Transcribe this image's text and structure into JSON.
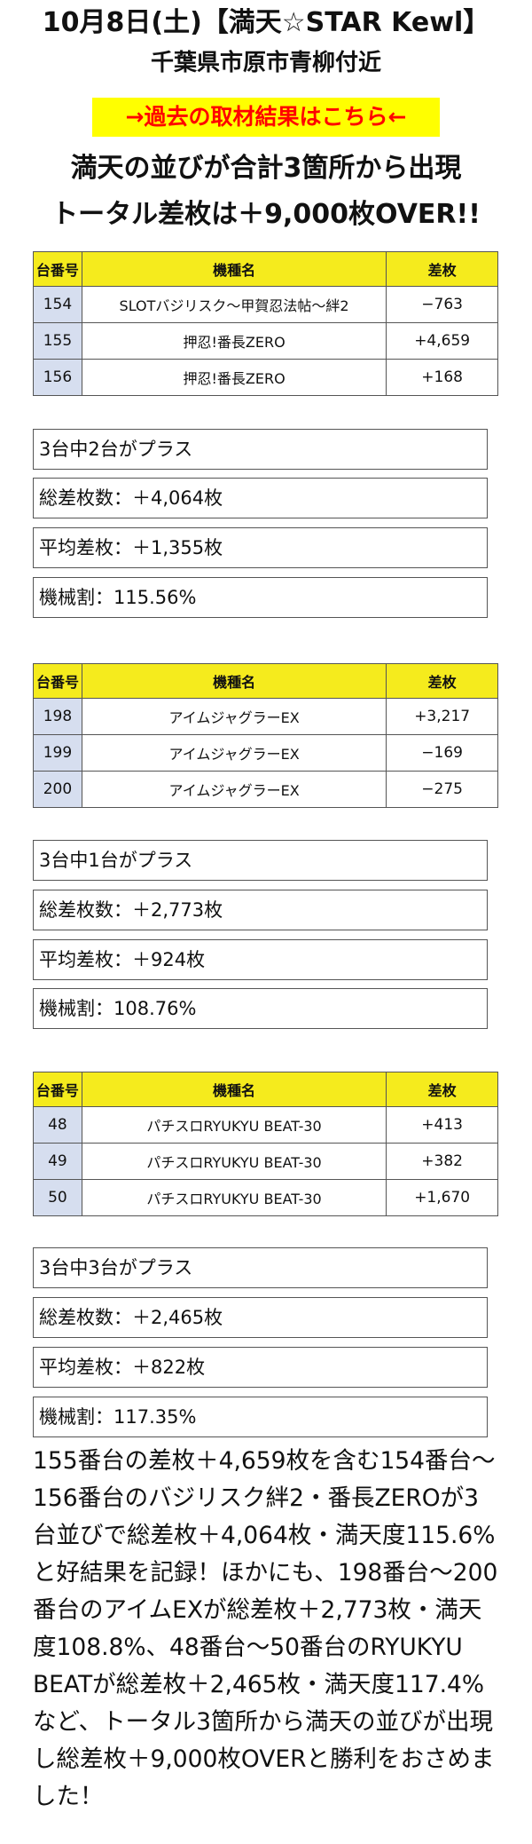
{
  "header": {
    "title": "10月8日(土)【満天☆STAR Kewl】",
    "location": "千葉県市原市青柳付近",
    "link_text": "→過去の取材結果はこちら←",
    "headline1": "満天の並びが合計3箇所から出現",
    "headline2": "トータル差枚は＋9,000枚OVER!!"
  },
  "columns": {
    "no": "台番号",
    "name": "機種名",
    "diff": "差枚"
  },
  "groups": [
    {
      "rows": [
        {
          "no": "154",
          "name": "SLOTバジリスク〜甲賀忍法帖〜絆2",
          "diff": "−763"
        },
        {
          "no": "155",
          "name": "押忍!番長ZERO",
          "diff": "+4,659"
        },
        {
          "no": "156",
          "name": "押忍!番長ZERO",
          "diff": "+168"
        }
      ],
      "summary": {
        "plus": "3台中2台がプラス",
        "total": "総差枚数：＋4,064枚",
        "avg": "平均差枚：＋1,355枚",
        "rate": "機械割：115.56%"
      }
    },
    {
      "rows": [
        {
          "no": "198",
          "name": "アイムジャグラーEX",
          "diff": "+3,217"
        },
        {
          "no": "199",
          "name": "アイムジャグラーEX",
          "diff": "−169"
        },
        {
          "no": "200",
          "name": "アイムジャグラーEX",
          "diff": "−275"
        }
      ],
      "summary": {
        "plus": "3台中1台がプラス",
        "total": "総差枚数：＋2,773枚",
        "avg": "平均差枚：＋924枚",
        "rate": "機械割：108.76%"
      }
    },
    {
      "rows": [
        {
          "no": "48",
          "name": "パチスロRYUKYU BEAT-30",
          "diff": "+413"
        },
        {
          "no": "49",
          "name": "パチスロRYUKYU BEAT-30",
          "diff": "+382"
        },
        {
          "no": "50",
          "name": "パチスロRYUKYU BEAT-30",
          "diff": "+1,670"
        }
      ],
      "summary": {
        "plus": "3台中3台がプラス",
        "total": "総差枚数：＋2,465枚",
        "avg": "平均差枚：＋822枚",
        "rate": "機械割：117.35%"
      }
    }
  ],
  "summary_text": "155番台の差枚＋4,659枚を含む154番台〜156番台のバジリスク絆2・番長ZEROが3台並びで総差枚＋4,064枚・満天度115.6%と好結果を記録！ほかにも、198番台〜200番台のアイムEXが総差枚＋2,773枚・満天度108.8%、48番台〜50番台のRYUKYU BEATが総差枚＋2,465枚・満天度117.4%など、トータル3箇所から満天の並びが出現し総差枚＋9,000枚OVERと勝利をおさめました！"
}
